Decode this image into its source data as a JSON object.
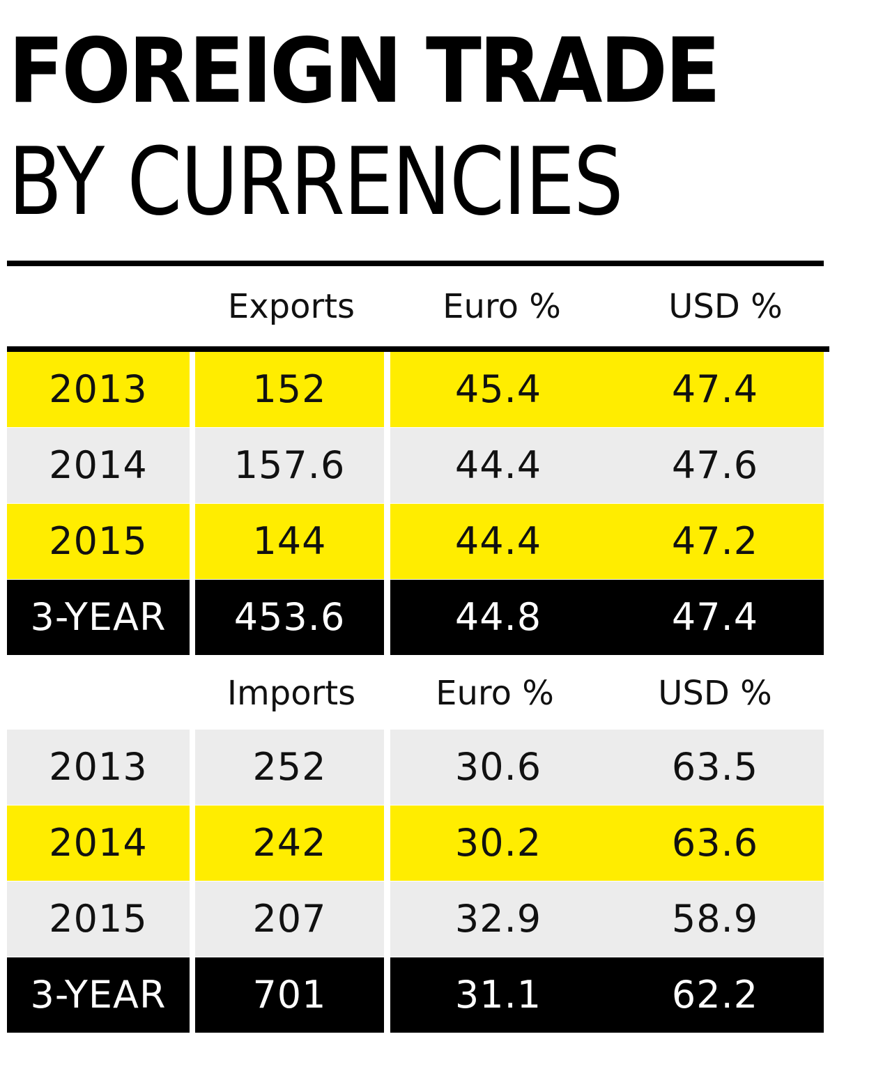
{
  "title": {
    "line1": "FOREIGN TRADE",
    "line2": "BY CURRENCIES"
  },
  "colors": {
    "highlight": "#ffed00",
    "stripe": "#ececec",
    "total": "#000000"
  },
  "chart_data": {
    "type": "table",
    "title": "FOREIGN TRADE BY CURRENCIES",
    "tables": [
      {
        "columns": [
          "",
          "Exports",
          "Euro %",
          "USD %"
        ],
        "rows": [
          {
            "year": "2013",
            "value": "152",
            "euro": "45.4",
            "usd": "47.4",
            "shade": "yellow"
          },
          {
            "year": "2014",
            "value": "157.6",
            "euro": "44.4",
            "usd": "47.6",
            "shade": "grey"
          },
          {
            "year": "2015",
            "value": "144",
            "euro": "44.4",
            "usd": "47.2",
            "shade": "yellow"
          },
          {
            "year": "3-YEAR",
            "value": "453.6",
            "euro": "44.8",
            "usd": "47.4",
            "shade": "black"
          }
        ]
      },
      {
        "columns": [
          "",
          "Imports",
          "Euro %",
          "USD %"
        ],
        "rows": [
          {
            "year": "2013",
            "value": "252",
            "euro": "30.6",
            "usd": "63.5",
            "shade": "grey"
          },
          {
            "year": "2014",
            "value": "242",
            "euro": "30.2",
            "usd": "63.6",
            "shade": "yellow"
          },
          {
            "year": "2015",
            "value": "207",
            "euro": "32.9",
            "usd": "58.9",
            "shade": "grey"
          },
          {
            "year": "3-YEAR",
            "value": "701",
            "euro": "31.1",
            "usd": "62.2",
            "shade": "black"
          }
        ]
      }
    ]
  }
}
